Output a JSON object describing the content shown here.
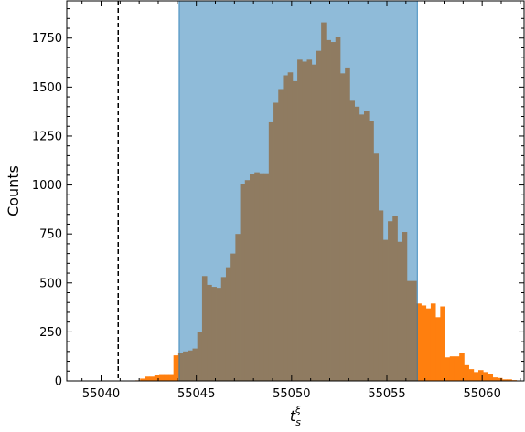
{
  "chart_data": {
    "type": "histogram",
    "xlabel": "t",
    "xlabel_sub": "s",
    "xlabel_sup": "ξ",
    "ylabel": "Counts",
    "xlim": [
      55038.2,
      55062.2
    ],
    "ylim": [
      0,
      1940
    ],
    "x_ticks": [
      55040,
      55045,
      55050,
      55055,
      55060
    ],
    "y_ticks": [
      0,
      250,
      500,
      750,
      1000,
      1250,
      1500,
      1750
    ],
    "x_minor_step": 1,
    "y_minor_step": 50,
    "bin_start": 55041.8,
    "bin_width": 0.25,
    "counts": [
      3,
      12,
      22,
      22,
      28,
      30,
      30,
      30,
      130,
      140,
      150,
      155,
      165,
      250,
      535,
      490,
      480,
      475,
      530,
      580,
      650,
      750,
      1005,
      1025,
      1055,
      1065,
      1060,
      1060,
      1320,
      1420,
      1490,
      1560,
      1575,
      1530,
      1640,
      1630,
      1640,
      1615,
      1685,
      1830,
      1740,
      1730,
      1755,
      1570,
      1600,
      1430,
      1400,
      1360,
      1380,
      1325,
      1160,
      870,
      720,
      815,
      840,
      710,
      760,
      510,
      510,
      395,
      385,
      370,
      395,
      325,
      380,
      120,
      125,
      125,
      140,
      80,
      60,
      45,
      55,
      45,
      35,
      18,
      15,
      8,
      8,
      4
    ],
    "highlight_range": [
      55044.1,
      55056.6
    ],
    "vline_x": 55040.9,
    "colors": {
      "hist": "#ff7f0e",
      "band": "#1f77b4",
      "band_alpha": 0.5,
      "vline": "#000000"
    }
  }
}
